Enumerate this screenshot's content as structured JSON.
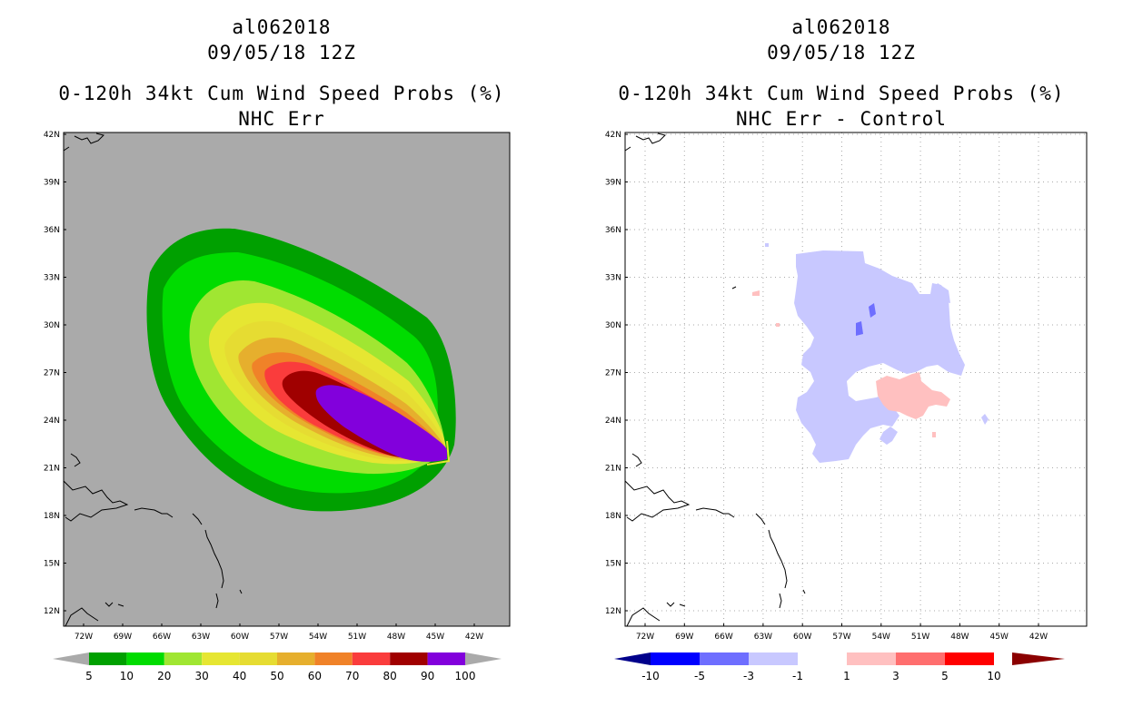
{
  "left_panel": {
    "storm_id": "al062018",
    "datetime": "09/05/18 12Z",
    "product": "0-120h 34kt Cum Wind Speed Probs (%)",
    "subtitle": "NHC Err",
    "background_color": "#aaaaaa",
    "colorbar": {
      "labels": [
        "5",
        "10",
        "20",
        "30",
        "40",
        "50",
        "60",
        "70",
        "80",
        "90",
        "100"
      ],
      "colors": [
        "#00a000",
        "#00dc00",
        "#a0e632",
        "#e6e632",
        "#e6dc32",
        "#e6af2d",
        "#f08228",
        "#fa3c3c",
        "#a00000",
        "#8200dc"
      ],
      "end_color": "#aaaaaa"
    }
  },
  "right_panel": {
    "storm_id": "al062018",
    "datetime": "09/05/18 12Z",
    "product": "0-120h 34kt Cum Wind Speed Probs (%)",
    "subtitle": "NHC Err - Control",
    "background_color": "#ffffff",
    "colorbar": {
      "labels": [
        "-10",
        "-5",
        "-3",
        "-1",
        "1",
        "3",
        "5",
        "10"
      ],
      "colors": [
        "#0000ff",
        "#6e6eff",
        "#c8c8ff",
        "#ffffff",
        "#ffc0c0",
        "#ff6e6e",
        "#ff0000"
      ],
      "low_end_color": "#00008b",
      "high_end_color": "#8b0000"
    }
  },
  "axes": {
    "lat_labels": [
      "42N",
      "39N",
      "36N",
      "33N",
      "30N",
      "27N",
      "24N",
      "21N",
      "18N",
      "15N",
      "12N"
    ],
    "lon_labels": [
      "72W",
      "69W",
      "66W",
      "63W",
      "60W",
      "57W",
      "54W",
      "51W",
      "48W",
      "45W",
      "42W"
    ]
  }
}
